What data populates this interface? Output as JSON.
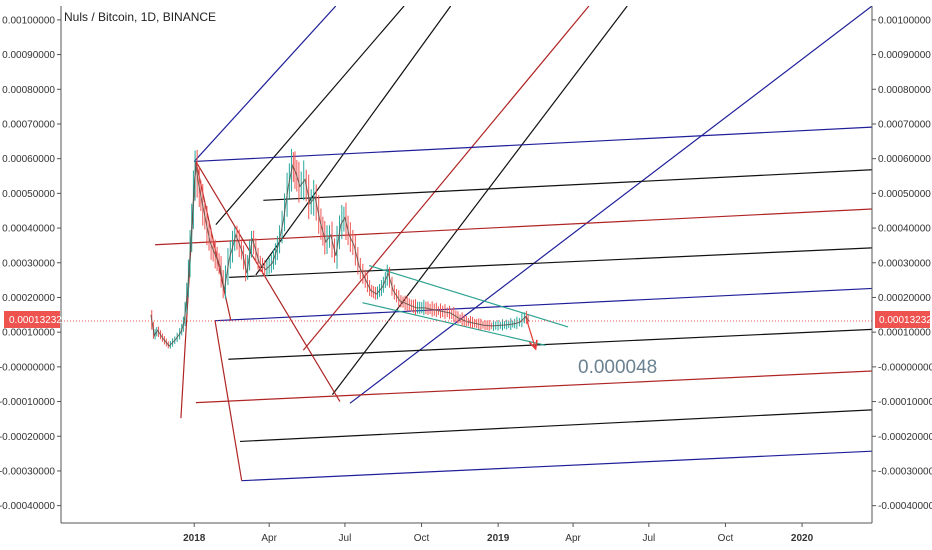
{
  "chart_title": "Nuls / Bitcoin, 1D, BINANCE",
  "annotation": "0.000048",
  "last_price": "0.00013232",
  "chart_data": {
    "type": "line",
    "title": "Nuls / Bitcoin, 1D, BINANCE",
    "xlabel": "",
    "ylabel": "",
    "x_ticks": [
      "2018",
      "Apr",
      "Jul",
      "Oct",
      "2019",
      "Apr",
      "Jul",
      "Oct",
      "2020"
    ],
    "y_ticks": [
      "0.00100000",
      "0.00090000",
      "0.00080000",
      "0.00070000",
      "0.00060000",
      "0.00050000",
      "0.00040000",
      "0.00030000",
      "0.00020000",
      "0.00010000",
      "-0.00000000",
      "-0.00010000",
      "-0.00020000",
      "-0.00030000",
      "-0.00040000"
    ],
    "ylim": [
      -0.00045,
      0.00104
    ],
    "xlim": [
      "2017-07-25",
      "2020-03-25"
    ],
    "grid": false,
    "price_line": 0.00013232,
    "price_colors": {
      "up": "#26a69a",
      "down": "#ef5350",
      "line": "#ef5350"
    },
    "price_series": [
      {
        "x": "2017-11-10",
        "y": 0.00015
      },
      {
        "x": "2017-11-14",
        "y": 9e-05
      },
      {
        "x": "2017-11-18",
        "y": 0.000105
      },
      {
        "x": "2017-11-25",
        "y": 8e-05
      },
      {
        "x": "2017-12-02",
        "y": 6e-05
      },
      {
        "x": "2017-12-10",
        "y": 8e-05
      },
      {
        "x": "2017-12-16",
        "y": 0.0001
      },
      {
        "x": "2017-12-20",
        "y": 0.00013
      },
      {
        "x": "2017-12-24",
        "y": 0.00022
      },
      {
        "x": "2017-12-28",
        "y": 0.00036
      },
      {
        "x": "2018-01-01",
        "y": 0.00052
      },
      {
        "x": "2018-01-03",
        "y": 0.00058
      },
      {
        "x": "2018-01-06",
        "y": 0.00053
      },
      {
        "x": "2018-01-10",
        "y": 0.00048
      },
      {
        "x": "2018-01-15",
        "y": 0.00042
      },
      {
        "x": "2018-01-20",
        "y": 0.00036
      },
      {
        "x": "2018-01-25",
        "y": 0.00033
      },
      {
        "x": "2018-02-01",
        "y": 0.00029
      },
      {
        "x": "2018-02-06",
        "y": 0.00022
      },
      {
        "x": "2018-02-12",
        "y": 0.00031
      },
      {
        "x": "2018-02-20",
        "y": 0.00038
      },
      {
        "x": "2018-02-28",
        "y": 0.00033
      },
      {
        "x": "2018-03-05",
        "y": 0.00027
      },
      {
        "x": "2018-03-12",
        "y": 0.00037
      },
      {
        "x": "2018-03-20",
        "y": 0.0003
      },
      {
        "x": "2018-03-28",
        "y": 0.00028
      },
      {
        "x": "2018-04-05",
        "y": 0.0003
      },
      {
        "x": "2018-04-12",
        "y": 0.00035
      },
      {
        "x": "2018-04-18",
        "y": 0.00042
      },
      {
        "x": "2018-04-24",
        "y": 0.00052
      },
      {
        "x": "2018-04-29",
        "y": 0.00058
      },
      {
        "x": "2018-05-03",
        "y": 0.00056
      },
      {
        "x": "2018-05-08",
        "y": 0.00052
      },
      {
        "x": "2018-05-14",
        "y": 0.00054
      },
      {
        "x": "2018-05-20",
        "y": 0.00047
      },
      {
        "x": "2018-05-26",
        "y": 0.00049
      },
      {
        "x": "2018-06-01",
        "y": 0.00042
      },
      {
        "x": "2018-06-08",
        "y": 0.00036
      },
      {
        "x": "2018-06-14",
        "y": 0.00038
      },
      {
        "x": "2018-06-20",
        "y": 0.00032
      },
      {
        "x": "2018-06-26",
        "y": 0.00041
      },
      {
        "x": "2018-07-01",
        "y": 0.00043
      },
      {
        "x": "2018-07-06",
        "y": 0.00038
      },
      {
        "x": "2018-07-12",
        "y": 0.00035
      },
      {
        "x": "2018-07-18",
        "y": 0.00029
      },
      {
        "x": "2018-07-24",
        "y": 0.00026
      },
      {
        "x": "2018-08-01",
        "y": 0.00022
      },
      {
        "x": "2018-08-08",
        "y": 0.00021
      },
      {
        "x": "2018-08-15",
        "y": 0.00023
      },
      {
        "x": "2018-08-22",
        "y": 0.00027
      },
      {
        "x": "2018-08-28",
        "y": 0.00022
      },
      {
        "x": "2018-09-05",
        "y": 0.00019
      },
      {
        "x": "2018-09-15",
        "y": 0.00018
      },
      {
        "x": "2018-09-25",
        "y": 0.00017
      },
      {
        "x": "2018-10-05",
        "y": 0.00017
      },
      {
        "x": "2018-10-15",
        "y": 0.000165
      },
      {
        "x": "2018-10-25",
        "y": 0.00016
      },
      {
        "x": "2018-11-05",
        "y": 0.000155
      },
      {
        "x": "2018-11-15",
        "y": 0.00014
      },
      {
        "x": "2018-11-25",
        "y": 0.00013
      },
      {
        "x": "2018-12-05",
        "y": 0.000125
      },
      {
        "x": "2018-12-15",
        "y": 0.00012
      },
      {
        "x": "2018-12-25",
        "y": 0.000118
      },
      {
        "x": "2019-01-05",
        "y": 0.00012
      },
      {
        "x": "2019-01-15",
        "y": 0.000122
      },
      {
        "x": "2019-01-22",
        "y": 0.000125
      },
      {
        "x": "2019-01-28",
        "y": 0.00013
      },
      {
        "x": "2019-02-03",
        "y": 0.000145
      },
      {
        "x": "2019-02-07",
        "y": 0.00013232
      }
    ],
    "drawings": [
      {
        "kind": "line",
        "color": "#1f1f9a",
        "from": {
          "x": "2018-01-01",
          "y": 0.000592
        },
        "to": {
          "x": "2018-06-20",
          "y": 0.00104
        }
      },
      {
        "kind": "line",
        "color": "#111111",
        "from": {
          "x": "2018-01-27",
          "y": 0.00041
        },
        "to": {
          "x": "2018-09-10",
          "y": 0.00104
        }
      },
      {
        "kind": "line",
        "color": "#111111",
        "from": {
          "x": "2018-03-16",
          "y": 0.000265
        },
        "to": {
          "x": "2018-11-05",
          "y": 0.00104
        }
      },
      {
        "kind": "line",
        "color": "#b02424",
        "from": {
          "x": "2018-05-12",
          "y": 4.8e-05
        },
        "to": {
          "x": "2019-04-20",
          "y": 0.00104
        }
      },
      {
        "kind": "line",
        "color": "#111111",
        "from": {
          "x": "2018-06-16",
          "y": -8e-05
        },
        "to": {
          "x": "2019-06-05",
          "y": 0.00104
        }
      },
      {
        "kind": "line",
        "color": "#1f1f9a",
        "from": {
          "x": "2018-07-07",
          "y": -0.000105
        },
        "to": {
          "x": "2020-03-25",
          "y": 0.00104
        }
      },
      {
        "kind": "line",
        "color": "#1f1f9a",
        "from": {
          "x": "2018-01-01",
          "y": 0.000592
        },
        "to": {
          "x": "2020-03-25",
          "y": 0.000691
        }
      },
      {
        "kind": "line",
        "color": "#111111",
        "from": {
          "x": "2018-03-25",
          "y": 0.00048
        },
        "to": {
          "x": "2020-03-25",
          "y": 0.000568
        }
      },
      {
        "kind": "line",
        "color": "#b02424",
        "from": {
          "x": "2017-11-15",
          "y": 0.000352
        },
        "to": {
          "x": "2020-03-25",
          "y": 0.000455
        }
      },
      {
        "kind": "line",
        "color": "#111111",
        "from": {
          "x": "2018-02-12",
          "y": 0.000258
        },
        "to": {
          "x": "2020-03-25",
          "y": 0.000343
        }
      },
      {
        "kind": "line",
        "color": "#1f1f9a",
        "from": {
          "x": "2018-01-26",
          "y": 0.000133
        },
        "to": {
          "x": "2020-03-25",
          "y": 0.000226
        }
      },
      {
        "kind": "line",
        "color": "#111111",
        "from": {
          "x": "2018-02-11",
          "y": 2.2e-05
        },
        "to": {
          "x": "2020-03-25",
          "y": 0.000108
        }
      },
      {
        "kind": "line",
        "color": "#b02424",
        "from": {
          "x": "2018-01-03",
          "y": -0.000103
        },
        "to": {
          "x": "2020-03-25",
          "y": -1.2e-05
        }
      },
      {
        "kind": "line",
        "color": "#111111",
        "from": {
          "x": "2018-02-25",
          "y": -0.000215
        },
        "to": {
          "x": "2020-03-25",
          "y": -0.000124
        }
      },
      {
        "kind": "line",
        "color": "#1f1f9a",
        "from": {
          "x": "2018-02-27",
          "y": -0.000328
        },
        "to": {
          "x": "2020-03-25",
          "y": -0.000243
        }
      },
      {
        "kind": "line",
        "color": "#b02424",
        "from": {
          "x": "2017-12-16",
          "y": -0.000148
        },
        "to": {
          "x": "2018-01-03",
          "y": 0.000592
        }
      },
      {
        "kind": "line",
        "color": "#b02424",
        "from": {
          "x": "2018-01-03",
          "y": 0.000592
        },
        "to": {
          "x": "2018-06-25",
          "y": -0.0001
        }
      },
      {
        "kind": "line",
        "color": "#b02424",
        "from": {
          "x": "2018-01-03",
          "y": 0.000592
        },
        "to": {
          "x": "2018-02-14",
          "y": 0.000133
        }
      },
      {
        "kind": "line",
        "color": "#b02424",
        "from": {
          "x": "2018-01-26",
          "y": 0.000133
        },
        "to": {
          "x": "2018-02-27",
          "y": -0.000328
        }
      },
      {
        "kind": "line",
        "color": "#2ea391",
        "from": {
          "x": "2018-07-30",
          "y": 0.000292
        },
        "to": {
          "x": "2019-03-26",
          "y": 0.000115
        }
      },
      {
        "kind": "line",
        "color": "#2ea391",
        "from": {
          "x": "2018-07-22",
          "y": 0.000185
        },
        "to": {
          "x": "2019-02-27",
          "y": 6.2e-05
        }
      },
      {
        "kind": "arrow",
        "color": "#e53935",
        "from": {
          "x": "2019-02-03",
          "y": 0.000145
        },
        "to": {
          "x": "2019-02-15",
          "y": 5.2e-05
        }
      }
    ]
  }
}
